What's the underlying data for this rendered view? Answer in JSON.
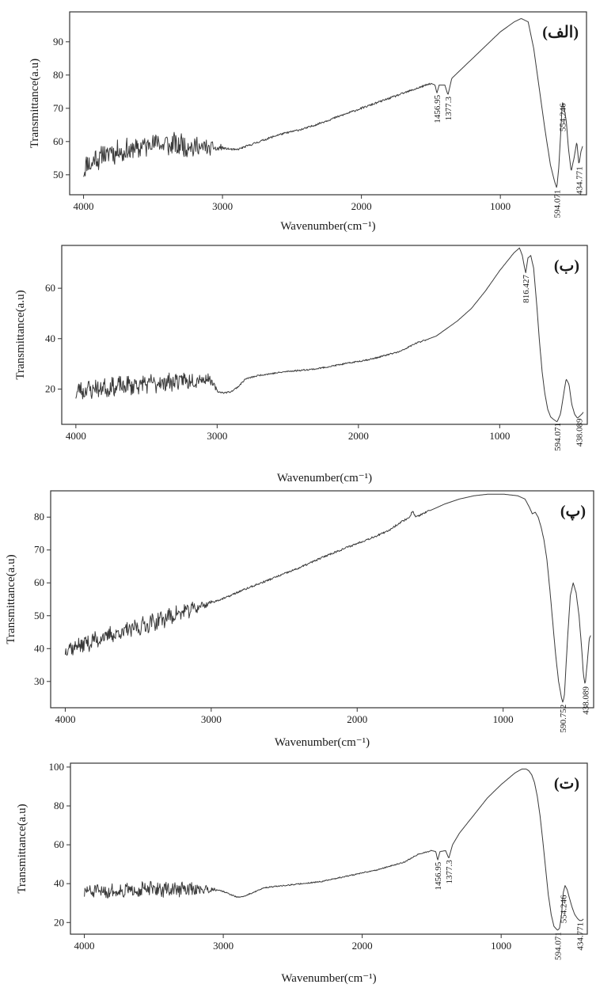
{
  "chart_data": [
    {
      "type": "line",
      "panel_label": "(الف)",
      "xlabel": "Wavenumber(cm⁻¹)",
      "ylabel": "Transmittance(a.u)",
      "xlim": [
        4100,
        380
      ],
      "ylim": [
        44,
        99
      ],
      "x_ticks": [
        4000,
        3000,
        2000,
        1000
      ],
      "y_ticks": [
        50,
        60,
        70,
        80,
        90
      ],
      "noise_region": {
        "from": 4000,
        "to": 3000,
        "amplitude": 3.0,
        "seed": 11
      },
      "peak_labels": [
        {
          "x": 1456.95,
          "text": "1456.95"
        },
        {
          "x": 1377.3,
          "text": "1377.3"
        },
        {
          "x": 594.071,
          "text": "594.071"
        },
        {
          "x": 554.246,
          "text": "554.246"
        },
        {
          "x": 434.771,
          "text": "434.771"
        }
      ],
      "series": [
        {
          "x": [
            4000,
            3900,
            3800,
            3700,
            3600,
            3500,
            3400,
            3300,
            3200,
            3100,
            3000,
            2900,
            2800,
            2600,
            2400,
            2200,
            2000,
            1800,
            1600,
            1500,
            1470,
            1456.95,
            1440,
            1400,
            1377.3,
            1350,
            1200,
            1000,
            900,
            850,
            800,
            760,
            720,
            680,
            640,
            610,
            594.071,
            580,
            565,
            554.246,
            540,
            525,
            510,
            490,
            470,
            450,
            434.771,
            420,
            405
          ],
          "y": [
            52,
            55,
            57,
            57,
            58,
            60,
            59,
            59,
            58.5,
            58,
            58,
            57.5,
            59,
            62,
            64,
            67,
            70,
            73,
            76,
            77.5,
            77,
            74.5,
            77,
            77,
            74,
            79,
            85,
            93,
            96,
            97,
            96,
            88,
            76,
            64,
            53,
            48,
            46,
            52,
            63,
            72,
            70,
            66,
            58,
            51,
            55,
            60,
            53,
            57,
            59
          ]
        }
      ]
    },
    {
      "type": "line",
      "panel_label": "(ب)",
      "xlabel": "Wavenumber(cm⁻¹)",
      "ylabel": "Transmittance(a.u)",
      "xlim": [
        4100,
        380
      ],
      "ylim": [
        6,
        77
      ],
      "x_ticks": [
        4000,
        3000,
        2000,
        1000
      ],
      "y_ticks": [
        20,
        40,
        60
      ],
      "noise_region": {
        "from": 4000,
        "to": 3000,
        "amplitude": 3.2,
        "seed": 23
      },
      "peak_labels": [
        {
          "x": 816.427,
          "text": "816.427"
        },
        {
          "x": 594.071,
          "text": "594.071"
        },
        {
          "x": 438.089,
          "text": "438.089"
        }
      ],
      "series": [
        {
          "x": [
            4000,
            3900,
            3800,
            3700,
            3600,
            3500,
            3400,
            3300,
            3200,
            3100,
            3050,
            3000,
            2950,
            2900,
            2850,
            2800,
            2700,
            2500,
            2300,
            2100,
            1900,
            1700,
            1600,
            1500,
            1450,
            1400,
            1300,
            1200,
            1100,
            1000,
            900,
            860,
            840,
            816.427,
            800,
            780,
            760,
            740,
            720,
            700,
            680,
            660,
            640,
            620,
            594.071,
            570,
            550,
            530,
            510,
            490,
            470,
            450,
            438.089,
            420,
            405
          ],
          "y": [
            19,
            20,
            20.5,
            21,
            21.5,
            22,
            22.5,
            23,
            23.5,
            24,
            24,
            19,
            18.5,
            19,
            21,
            24,
            25.5,
            27,
            28,
            30,
            32,
            35,
            38,
            40,
            41,
            43,
            47,
            52,
            59,
            67,
            74,
            76,
            73,
            66,
            72,
            73,
            68,
            55,
            40,
            27,
            18,
            12,
            9,
            8,
            7,
            10,
            17,
            24,
            22,
            14,
            10,
            8.5,
            9,
            10,
            11
          ]
        }
      ]
    },
    {
      "type": "line",
      "panel_label": "(پ)",
      "xlabel": "Wavenumber(cm⁻¹)",
      "ylabel": "Transmittance(a.u)",
      "xlim": [
        4100,
        380
      ],
      "ylim": [
        22,
        88
      ],
      "x_ticks": [
        4000,
        3000,
        2000,
        1000
      ],
      "y_ticks": [
        30,
        40,
        50,
        60,
        70,
        80
      ],
      "noise_region": {
        "from": 4000,
        "to": 3000,
        "amplitude": 2.2,
        "seed": 37
      },
      "peak_labels": [
        {
          "x": 590.752,
          "text": "590.752"
        },
        {
          "x": 438.089,
          "text": "438.089"
        }
      ],
      "series": [
        {
          "x": [
            4000,
            3900,
            3800,
            3700,
            3600,
            3500,
            3400,
            3300,
            3200,
            3100,
            3000,
            2900,
            2800,
            2600,
            2400,
            2200,
            2000,
            1800,
            1700,
            1640,
            1620,
            1600,
            1500,
            1400,
            1300,
            1200,
            1100,
            1000,
            900,
            850,
            820,
            800,
            780,
            760,
            740,
            720,
            700,
            680,
            660,
            640,
            620,
            600,
            590.752,
            580,
            560,
            540,
            520,
            500,
            480,
            460,
            450,
            438.089,
            425,
            410,
            400
          ],
          "y": [
            40,
            41,
            42.5,
            44,
            45,
            46.5,
            48,
            49.5,
            51,
            52.5,
            54,
            55.5,
            57.5,
            61,
            64.5,
            68.5,
            72,
            75.5,
            78.5,
            80,
            82,
            80,
            82,
            84,
            85.5,
            86.5,
            87,
            87,
            86.5,
            85.5,
            83,
            81,
            81.5,
            80,
            77,
            73,
            67,
            58,
            48,
            38,
            30,
            25,
            23.5,
            26,
            42,
            56,
            60,
            57,
            50,
            39,
            32,
            29,
            35,
            43,
            44
          ]
        }
      ]
    },
    {
      "type": "line",
      "panel_label": "(ت)",
      "xlabel": "Wavenumber(cm⁻¹)",
      "ylabel": "Transmittance(a.u)",
      "xlim": [
        4100,
        380
      ],
      "ylim": [
        14,
        102
      ],
      "x_ticks": [
        4000,
        3000,
        2000,
        1000
      ],
      "y_ticks": [
        20,
        40,
        60,
        80,
        100
      ],
      "noise_region": {
        "from": 4000,
        "to": 3050,
        "amplitude": 3.2,
        "seed": 51
      },
      "peak_labels": [
        {
          "x": 1456.95,
          "text": "1456.95"
        },
        {
          "x": 1377.3,
          "text": "1377.3"
        },
        {
          "x": 594.071,
          "text": "594.071"
        },
        {
          "x": 554.246,
          "text": "554.246"
        },
        {
          "x": 434.771,
          "text": "434.771"
        }
      ],
      "series": [
        {
          "x": [
            4000,
            3900,
            3800,
            3700,
            3600,
            3500,
            3400,
            3300,
            3200,
            3100,
            3050,
            3000,
            2950,
            2900,
            2850,
            2800,
            2700,
            2500,
            2300,
            2100,
            1900,
            1700,
            1600,
            1500,
            1470,
            1456.95,
            1440,
            1400,
            1377.3,
            1350,
            1300,
            1200,
            1100,
            1000,
            900,
            850,
            820,
            800,
            780,
            760,
            740,
            720,
            700,
            680,
            660,
            640,
            620,
            594.071,
            580,
            565,
            554.246,
            540,
            525,
            510,
            490,
            470,
            450,
            434.771,
            420,
            405
          ],
          "y": [
            36,
            36,
            36,
            36.5,
            37,
            37,
            37,
            37,
            37,
            37,
            37,
            36,
            34.5,
            33,
            33.5,
            35,
            38,
            39.5,
            41,
            44,
            47,
            51,
            55,
            57,
            56.5,
            52,
            56.5,
            57,
            53,
            60,
            66,
            75,
            84,
            91,
            97,
            99,
            99,
            98,
            96,
            92,
            85,
            75,
            62,
            48,
            34,
            24,
            18,
            16,
            17,
            24,
            35,
            39,
            37,
            33,
            28,
            24,
            22,
            21,
            21,
            22
          ]
        }
      ]
    }
  ]
}
